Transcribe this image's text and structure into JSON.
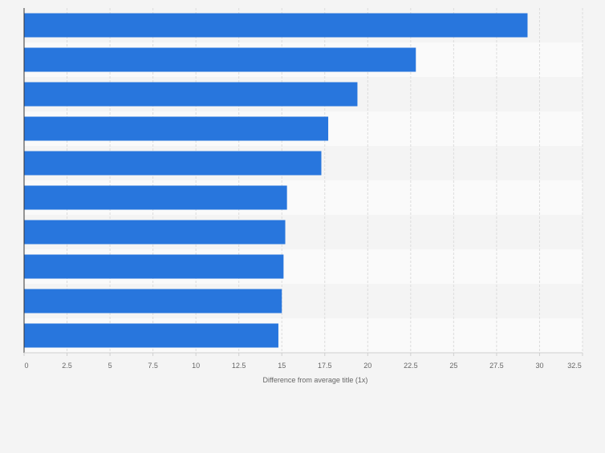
{
  "chart_data": {
    "type": "bar",
    "orientation": "horizontal",
    "categories": [
      "",
      "",
      "",
      "",
      "",
      "",
      "",
      "",
      "",
      ""
    ],
    "values": [
      29.3,
      22.8,
      19.4,
      17.7,
      17.3,
      15.3,
      15.2,
      15.1,
      15.0,
      14.8
    ],
    "xlabel": "Difference from average title (1x)",
    "ylabel": "",
    "xlim": [
      0,
      32.5
    ],
    "xticks": [
      0,
      2.5,
      5,
      7.5,
      10,
      12.5,
      15,
      17.5,
      20,
      22.5,
      25,
      27.5,
      30,
      32.5
    ],
    "xtick_labels": [
      "0",
      "2.5",
      "5",
      "7.5",
      "10",
      "12.5",
      "15",
      "17.5",
      "20",
      "22.5",
      "25",
      "27.5",
      "30",
      "32.5"
    ],
    "grid": "vertical dashed",
    "bar_color": "#2876dd",
    "band_colors": [
      "#f4f4f4",
      "#fafafa"
    ]
  }
}
